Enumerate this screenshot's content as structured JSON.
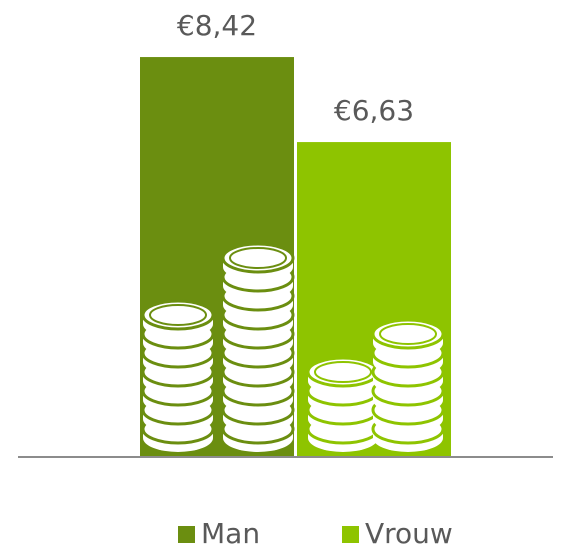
{
  "chart_data": {
    "type": "bar",
    "series": [
      {
        "name": "Man",
        "color": "#6b8e10",
        "values": [
          8.42
        ],
        "value_labels": [
          "€8,42"
        ]
      },
      {
        "name": "Vrouw",
        "color": "#8ec400",
        "values": [
          6.63
        ],
        "value_labels": [
          "€6,63"
        ]
      }
    ]
  }
}
